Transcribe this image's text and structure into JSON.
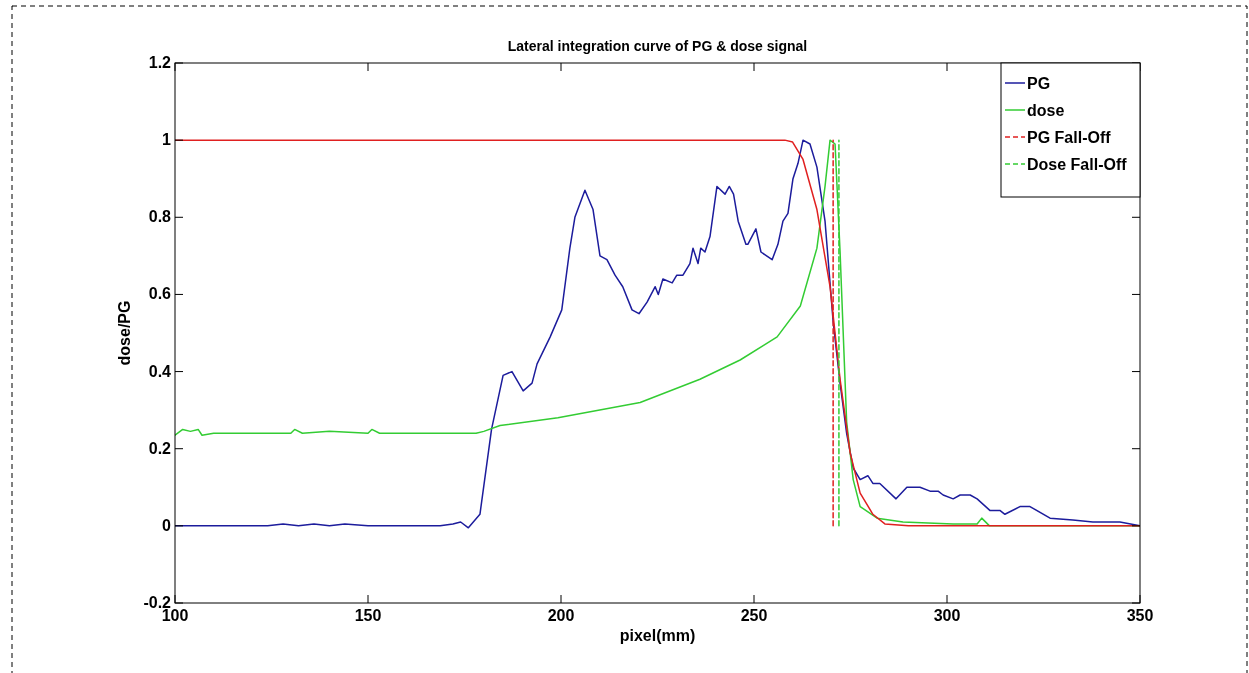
{
  "chart_data": {
    "type": "line",
    "title": "Lateral integration curve of PG & dose signal",
    "xlabel": "pixel(mm)",
    "ylabel": "dose/PG",
    "xlim": [
      100,
      350
    ],
    "ylim": [
      -0.2,
      1.2
    ],
    "xticks": [
      100,
      150,
      200,
      250,
      300,
      350
    ],
    "yticks": [
      -0.2,
      0,
      0.2,
      0.4,
      0.6,
      0.8,
      1,
      1.2
    ],
    "grid": false,
    "legend": "top right",
    "line_style": "solid",
    "series": [
      {
        "name": "PG",
        "color": "#1c1c9c",
        "x": [
          100,
          124,
          128,
          132,
          136,
          140,
          144,
          150,
          168.7,
          172,
          174,
          176,
          179,
          182,
          185,
          187.3,
          190.2,
          192.5,
          193.8,
          197.2,
          200.2,
          202.3,
          203.6,
          206.2,
          208.3,
          210.1,
          211.9,
          214,
          216,
          218.4,
          220.2,
          222.3,
          224.4,
          225.2,
          226.4,
          228.8,
          230,
          231.6,
          233.4,
          234.2,
          235.5,
          236.2,
          237.3,
          238.6,
          240.4,
          242.5,
          243.6,
          244.7,
          245.9,
          247.9,
          248.4,
          250.5,
          251.8,
          254.7,
          256.2,
          257.5,
          258.8,
          260.1,
          261.4,
          262.7,
          264.5,
          266.3,
          268.4,
          270.5,
          272.3,
          274,
          275.7,
          277.5,
          279.5,
          280.8,
          282.6,
          286.8,
          289.6,
          293,
          295.6,
          297.7,
          299,
          301.6,
          303.4,
          306,
          307.8,
          311.1,
          313.7,
          315,
          318.9,
          321.5,
          326.7,
          332.6,
          337.8,
          344.8,
          350
        ],
        "values": [
          0,
          0,
          0.005,
          0,
          0.005,
          0,
          0.005,
          0,
          0,
          0.005,
          0.01,
          -0.005,
          0.03,
          0.25,
          0.39,
          0.4,
          0.35,
          0.37,
          0.42,
          0.49,
          0.56,
          0.72,
          0.8,
          0.87,
          0.82,
          0.7,
          0.69,
          0.65,
          0.62,
          0.56,
          0.55,
          0.58,
          0.62,
          0.6,
          0.64,
          0.63,
          0.65,
          0.65,
          0.68,
          0.72,
          0.68,
          0.72,
          0.71,
          0.75,
          0.88,
          0.86,
          0.88,
          0.86,
          0.79,
          0.73,
          0.73,
          0.77,
          0.71,
          0.69,
          0.73,
          0.79,
          0.81,
          0.9,
          0.94,
          1,
          0.99,
          0.93,
          0.79,
          0.53,
          0.37,
          0.24,
          0.15,
          0.12,
          0.13,
          0.11,
          0.11,
          0.07,
          0.1,
          0.1,
          0.09,
          0.09,
          0.08,
          0.07,
          0.08,
          0.08,
          0.07,
          0.04,
          0.04,
          0.03,
          0.05,
          0.05,
          0.02,
          0.015,
          0.01,
          0.01,
          0
        ]
      },
      {
        "name": "dose",
        "color": "#33cc33",
        "x": [
          100,
          102,
          104,
          106,
          107,
          110,
          120,
          130,
          131,
          133,
          140,
          150,
          151,
          153,
          160,
          170,
          178,
          180,
          184.2,
          199.2,
          220.5,
          236,
          246.4,
          256,
          262,
          266.3,
          268.4,
          269.7,
          271,
          272.3,
          274,
          275.7,
          277.5,
          281.9,
          288.6,
          301.6,
          307.8,
          309,
          311,
          350
        ],
        "values": [
          0.235,
          0.25,
          0.245,
          0.25,
          0.235,
          0.24,
          0.24,
          0.24,
          0.25,
          0.24,
          0.245,
          0.24,
          0.25,
          0.24,
          0.24,
          0.24,
          0.24,
          0.245,
          0.26,
          0.28,
          0.32,
          0.38,
          0.43,
          0.49,
          0.57,
          0.72,
          0.88,
          1,
          0.99,
          0.71,
          0.27,
          0.12,
          0.05,
          0.02,
          0.01,
          0.005,
          0.005,
          0.02,
          0,
          0
        ]
      },
      {
        "color": "#e02020",
        "x": [
          100,
          250,
          258,
          260,
          262.7,
          266.3,
          269.7,
          272.3,
          274.9,
          277.5,
          280.8,
          283.9,
          290,
          350
        ],
        "values": [
          1,
          1,
          1,
          0.995,
          0.95,
          0.82,
          0.62,
          0.38,
          0.19,
          0.085,
          0.03,
          0.005,
          0,
          0
        ]
      },
      {
        "name": "PG Fall-Off",
        "color": "#e02020",
        "line_style": "dashed",
        "x": [
          270.5,
          270.5
        ],
        "values": [
          0,
          1
        ]
      },
      {
        "name": "Dose Fall-Off",
        "color": "#33cc33",
        "line_style": "dashed",
        "x": [
          272,
          272
        ],
        "values": [
          0,
          1
        ]
      }
    ]
  }
}
